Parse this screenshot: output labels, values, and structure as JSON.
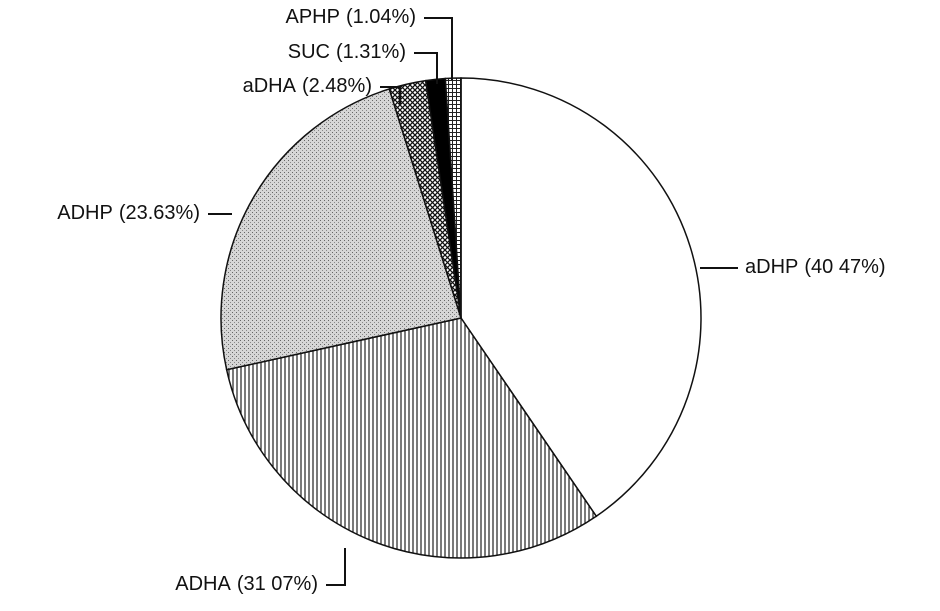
{
  "chart_data": {
    "type": "pie",
    "categories": [
      "aDHP",
      "ADHA",
      "ADHP",
      "aDHA",
      "SUC",
      "APHP"
    ],
    "values": [
      40.47,
      31.07,
      23.63,
      2.48,
      1.31,
      1.04
    ],
    "value_labels": [
      "(40 47%)",
      "(31 07%)",
      "(23.63%)",
      "(2.48%)",
      "(1.31%)",
      "(1.04%)"
    ]
  }
}
